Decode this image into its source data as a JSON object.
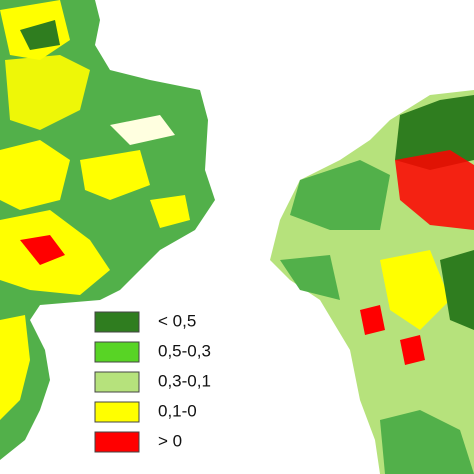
{
  "legend": {
    "items": [
      {
        "label": "< 0,5",
        "color": "#2f7d1f"
      },
      {
        "label": "0,5-0,3",
        "color": "#58d425"
      },
      {
        "label": "0,3-0,1",
        "color": "#b6e27c"
      },
      {
        "label": "0,1-0",
        "color": "#ffff00"
      },
      {
        "label": "> 0",
        "color": "#ff0000"
      }
    ]
  }
}
